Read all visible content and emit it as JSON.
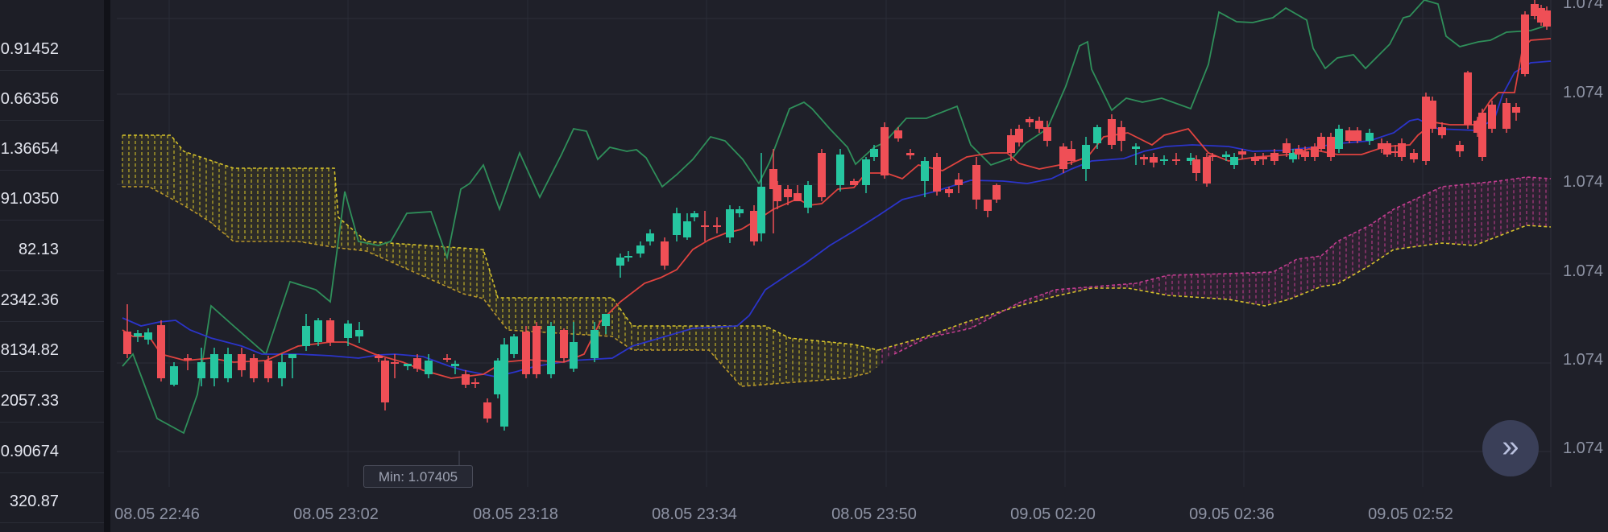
{
  "left_panel": {
    "values": [
      "0.91452",
      "0.66356",
      "1.36654",
      "91.0350",
      "82.13",
      "2342.36",
      "8134.82",
      "2057.33",
      "0.90674",
      "320.87"
    ]
  },
  "min_label": "Min: 1.07405",
  "scroll_button_icon": "double-chevron-right-icon",
  "colors": {
    "background": "#1f2029",
    "up": "#26c6a0",
    "down": "#ef4f56",
    "tenkan": "#e0433f",
    "kijun": "#2b34c9",
    "chikou": "#2f8f5a",
    "cloud_bullish": "#d6c32a",
    "cloud_bearish": "#c23d8f"
  },
  "chart_data": {
    "type": "candlestick",
    "x_ticks": [
      "08.05 22:46",
      "08.05 23:02",
      "08.05 23:18",
      "08.05 23:34",
      "08.05 23:50",
      "09.05 02:20",
      "09.05 02:36",
      "09.05 02:52"
    ],
    "y_ticks": [
      "1.074",
      "1.074",
      "1.074",
      "1.074",
      "1.074",
      "1.074"
    ],
    "grid": true,
    "indicators": [
      "Ichimoku Cloud"
    ]
  }
}
